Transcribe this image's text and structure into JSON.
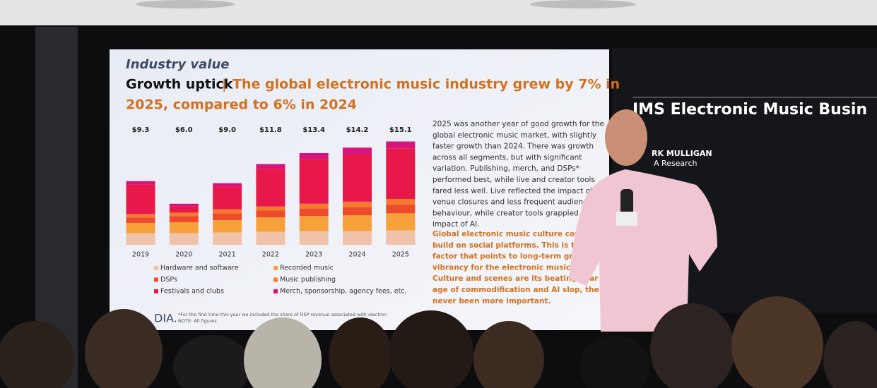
{
  "slide": {
    "kicker": "Industry value",
    "headline": "Growth uptick",
    "separator": "|",
    "headline_claim": [
      "The global electronic music industry grew by 7% in",
      "2025, compared to 6% in 2024"
    ],
    "body_1": [
      "2025 was another year of good growth for the",
      "global electronic music market, with slightly",
      "faster growth than 2024. There was growth",
      "across all segments, but with significant",
      "variation. Publishing, merch, and DSPs*",
      "performed best, while live and creator tools",
      "fared less well. Live reflected the impact of",
      "venue closures and less frequent audience",
      "behaviour, while creator tools grappled with",
      "impact of AI."
    ],
    "body_2": [
      "Global electronic music culture continues t",
      "build on social platforms. This is the cruci",
      "factor that points to long-term growth a",
      "vibrancy for the electronic music busin",
      "Culture and scenes are its beating hear",
      "age of commodification and AI slop, the",
      "never been more important."
    ],
    "logo": "DIA.",
    "footnotes": [
      "*For the first time this year we included the share of DSP revenue associated with electron",
      "NOTE: All figures"
    ]
  },
  "side_screen": {
    "title": "IMS Electronic Music Busin",
    "speaker": "RK MULLIGAN",
    "org": "A Research"
  },
  "chart_data": {
    "type": "stacked-bar",
    "categories": [
      "2019",
      "2020",
      "2021",
      "2022",
      "2023",
      "2024",
      "2025"
    ],
    "series": [
      {
        "name": "Hardware and software",
        "color": "#efc2a9",
        "values": [
          1.7,
          1.7,
          1.8,
          1.9,
          2.0,
          2.0,
          2.1
        ]
      },
      {
        "name": "Recorded music",
        "color": "#f6a13a",
        "values": [
          1.5,
          1.6,
          1.8,
          2.1,
          2.2,
          2.3,
          2.5
        ]
      },
      {
        "name": "DSPs",
        "color": "#ee4a2c",
        "values": [
          0.8,
          0.9,
          1.0,
          1.0,
          1.1,
          1.2,
          1.3
        ]
      },
      {
        "name": "Music publishing",
        "color": "#f47a2e",
        "values": [
          0.5,
          0.5,
          0.6,
          0.6,
          0.7,
          0.8,
          0.8
        ]
      },
      {
        "name": "Festivals and clubs",
        "color": "#e9184a",
        "values": [
          4.3,
          0.9,
          3.3,
          5.5,
          6.5,
          6.9,
          7.4
        ]
      },
      {
        "name": "Merch, sponsorship, agency fees, etc.",
        "color": "#d6147c",
        "values": [
          0.5,
          0.4,
          0.5,
          0.7,
          0.9,
          1.0,
          1.0
        ]
      }
    ],
    "totals": [
      9.3,
      6.0,
      9.0,
      11.8,
      13.4,
      14.2,
      15.1
    ],
    "total_labels": [
      "$9.3",
      "$6.0",
      "$9.0",
      "$11.8",
      "$13.4",
      "$14.2",
      "$15.1"
    ]
  }
}
